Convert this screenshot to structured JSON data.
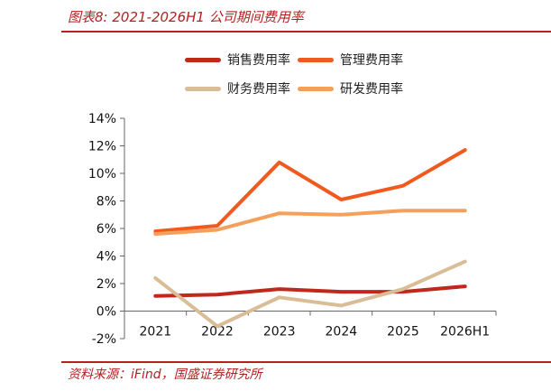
{
  "figure": {
    "title": "图表8:  2021-2026H1 公司期间费用率",
    "source": "资料来源：iFind，国盛证券研究所"
  },
  "legend": [
    {
      "name": "销售费用率",
      "color": "#c0281c"
    },
    {
      "name": "管理费用率",
      "color": "#f05a1e"
    },
    {
      "name": "财务费用率",
      "color": "#d9bd96"
    },
    {
      "name": "研发费用率",
      "color": "#f5a05a"
    }
  ],
  "chart_data": {
    "type": "line",
    "categories": [
      "2021",
      "2022",
      "2023",
      "2024",
      "2025",
      "2026H1"
    ],
    "ylim": [
      -2,
      14
    ],
    "yticks": [
      -2,
      0,
      2,
      4,
      6,
      8,
      10,
      12,
      14
    ],
    "ytick_labels": [
      "-2%",
      "0%",
      "2%",
      "4%",
      "6%",
      "8%",
      "10%",
      "12%",
      "14%"
    ],
    "grid": false,
    "legend_position": "top",
    "series": [
      {
        "name": "销售费用率",
        "color": "#c0281c",
        "values": [
          1.1,
          1.2,
          1.6,
          1.4,
          1.4,
          1.8
        ]
      },
      {
        "name": "管理费用率",
        "color": "#f05a1e",
        "values": [
          5.8,
          6.2,
          10.8,
          8.1,
          9.1,
          11.7
        ]
      },
      {
        "name": "财务费用率",
        "color": "#d9bd96",
        "values": [
          2.4,
          -1.1,
          1.0,
          0.4,
          1.6,
          3.6
        ]
      },
      {
        "name": "研发费用率",
        "color": "#f5a05a",
        "values": [
          5.6,
          5.9,
          7.1,
          7.0,
          7.3,
          7.3
        ]
      }
    ]
  }
}
